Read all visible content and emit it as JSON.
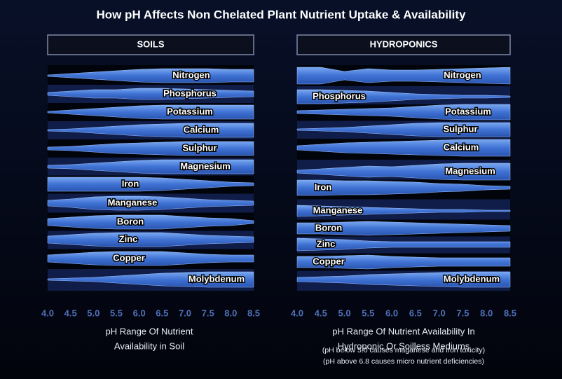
{
  "title": "How pH Affects Non Chelated Plant Nutrient Uptake & Availability",
  "panels": [
    {
      "heading": "SOILS",
      "nutrients": [
        "Nitrogen",
        "Phosphorus",
        "Potassium",
        "Calcium",
        "Sulphur",
        "Magnesium",
        "Iron",
        "Manganese",
        "Boron",
        "Zinc",
        "Copper",
        "Molybdenum"
      ],
      "x_ticks": [
        "4.0",
        "4.5",
        "5.0",
        "5.5",
        "6.0",
        "6.5",
        "7.0",
        "7.5",
        "8.0",
        "8.5"
      ],
      "caption": [
        "pH Range Of Nutrient",
        "Availability  in Soil"
      ]
    },
    {
      "heading": "HYDROPONICS",
      "nutrients": [
        "Nitrogen",
        "Phosphorus",
        "Potassium",
        "Sulphur",
        "Calcium",
        "Magnesium",
        "Iron",
        "Manganese",
        "Boron",
        "Zinc",
        "Copper",
        "Molybdenum"
      ],
      "x_ticks": [
        "4.0",
        "4.5",
        "5.0",
        "5.5",
        "6.0",
        "6.5",
        "7.0",
        "7.5",
        "8.0",
        "8.5"
      ],
      "caption": [
        "pH Range Of Nutrient Availability In",
        "Hydroponic Or Soilless Mediums"
      ],
      "notes": [
        "(pH below 5.0 causes maganese and iron toxicity)",
        "(pH above 6.8 causes micro nutrient deficiencies)"
      ]
    }
  ]
}
